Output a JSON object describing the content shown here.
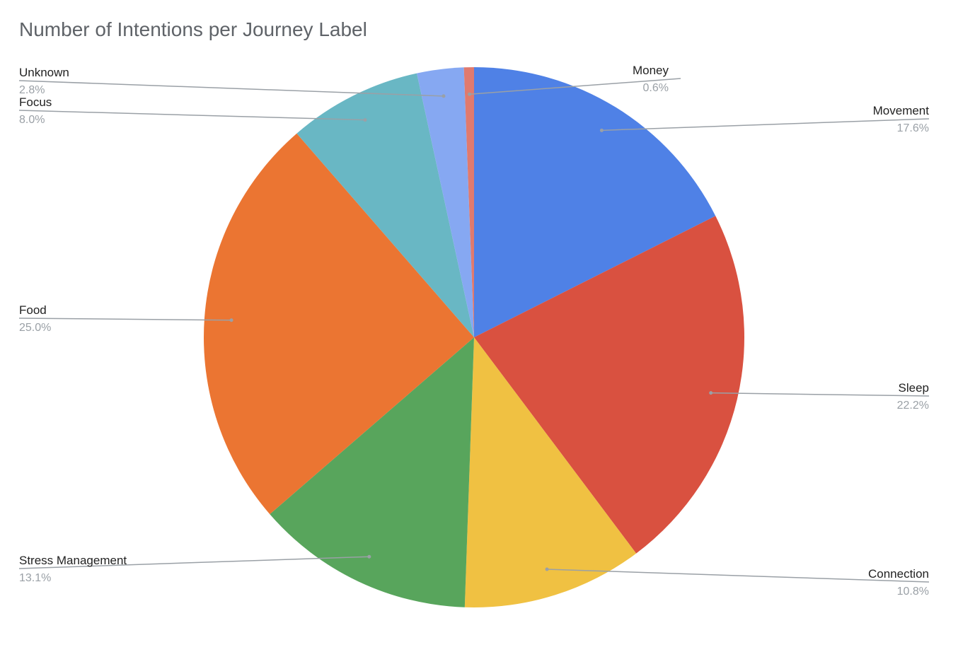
{
  "chart_data": {
    "type": "pie",
    "title": "Number of Intentions per Journey Label",
    "slices": [
      {
        "label": "Movement",
        "percent_label": "17.6%",
        "value": 17.6,
        "color": "#4f81e6"
      },
      {
        "label": "Sleep",
        "percent_label": "22.2%",
        "value": 22.2,
        "color": "#d95140"
      },
      {
        "label": "Connection",
        "percent_label": "10.8%",
        "value": 10.8,
        "color": "#f0c142"
      },
      {
        "label": "Stress Management",
        "percent_label": "13.1%",
        "value": 13.1,
        "color": "#58a55c"
      },
      {
        "label": "Food",
        "percent_label": "25.0%",
        "value": 25.0,
        "color": "#eb7532"
      },
      {
        "label": "Focus",
        "percent_label": "8.0%",
        "value": 8.0,
        "color": "#69b7c4"
      },
      {
        "label": "Unknown",
        "percent_label": "2.8%",
        "value": 2.8,
        "color": "#86a8f2"
      },
      {
        "label": "Money",
        "percent_label": "0.6%",
        "value": 0.6,
        "color": "#e07a6e"
      }
    ],
    "legend": "none"
  }
}
